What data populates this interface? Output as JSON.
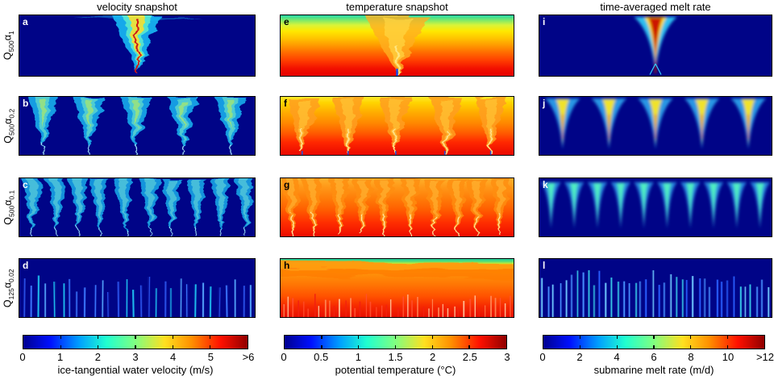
{
  "chart_data": {
    "type": "heatmap",
    "layout": "4 rows x 3 columns of simulation panels with three horizontal jet colorbars below",
    "columns": [
      {
        "id": "velocity",
        "title": "velocity snapshot"
      },
      {
        "id": "temperature",
        "title": "temperature snapshot"
      },
      {
        "id": "melt",
        "title": "time-averaged melt rate"
      }
    ],
    "rows": [
      {
        "id": "Q500-a1",
        "label_parts": {
          "base": "Q",
          "base_sub": "500",
          "alpha": "α",
          "alpha_sub": "1"
        }
      },
      {
        "id": "Q500-a0.2",
        "label_parts": {
          "base": "Q",
          "base_sub": "500",
          "alpha": "α",
          "alpha_sub": "0.2"
        }
      },
      {
        "id": "Q500-a0.1",
        "label_parts": {
          "base": "Q",
          "base_sub": "500",
          "alpha": "α",
          "alpha_sub": "0.1"
        }
      },
      {
        "id": "Q125-a0.02",
        "label_parts": {
          "base": "Q",
          "base_sub": "125",
          "alpha": "α",
          "alpha_sub": "0.02"
        }
      }
    ],
    "panels": [
      {
        "letter": "a",
        "row": 0,
        "col": 0,
        "type": "velocity",
        "plumes": 1,
        "seed": 11,
        "letter_color": "#ffffff",
        "description": "single turbulent discharge plume, red/yellow core"
      },
      {
        "letter": "b",
        "row": 1,
        "col": 0,
        "type": "velocity",
        "plumes": 5,
        "seed": 22,
        "letter_color": "#ffffff",
        "description": "five turbulent cyan plumes"
      },
      {
        "letter": "c",
        "row": 2,
        "col": 0,
        "type": "velocity",
        "plumes": 10,
        "seed": 33,
        "letter_color": "#ffffff",
        "description": "ten overlapping cyan plumes"
      },
      {
        "letter": "d",
        "row": 3,
        "col": 0,
        "type": "velocity-streaks",
        "streaks": 30,
        "seed": 44,
        "letter_color": "#ffffff",
        "description": "many thin blue velocity streaks"
      },
      {
        "letter": "e",
        "row": 0,
        "col": 1,
        "type": "temperature",
        "plumes": 1,
        "seed": 55,
        "bg": "e",
        "letter_color": "#000000",
        "description": "stratified temperature with single central plume"
      },
      {
        "letter": "f",
        "row": 1,
        "col": 1,
        "type": "temperature",
        "plumes": 5,
        "seed": 66,
        "bg": "f",
        "letter_color": "#000000",
        "description": "five warm plumes in stratified field"
      },
      {
        "letter": "g",
        "row": 2,
        "col": 1,
        "type": "temperature",
        "plumes": 10,
        "seed": 77,
        "bg": "g",
        "letter_color": "#000000",
        "description": "ten warm plumes"
      },
      {
        "letter": "h",
        "row": 3,
        "col": 1,
        "type": "temperature-streaks",
        "streaks": 45,
        "seed": 88,
        "bg": "h",
        "letter_color": "#000000",
        "description": "distributed convection, green surface layer over orange"
      },
      {
        "letter": "i",
        "row": 0,
        "col": 2,
        "type": "melt",
        "plumes": 1,
        "seed": 99,
        "letter_color": "#ffffff",
        "description": "single high melt cone, red core"
      },
      {
        "letter": "j",
        "row": 1,
        "col": 2,
        "type": "melt",
        "plumes": 5,
        "seed": 110,
        "letter_color": "#ffffff",
        "description": "five melt cones with yellow cores"
      },
      {
        "letter": "k",
        "row": 2,
        "col": 2,
        "type": "melt",
        "plumes": 10,
        "seed": 121,
        "letter_color": "#ffffff",
        "description": "ten green-cyan melt cones"
      },
      {
        "letter": "l",
        "row": 3,
        "col": 2,
        "type": "melt-streaks",
        "streaks": 40,
        "seed": 132,
        "letter_color": "#ffffff",
        "description": "many thin light-blue melt streaks"
      }
    ],
    "colorbars": [
      {
        "label": "ice-tangential water velocity (m/s)",
        "ticks": [
          "0",
          "1",
          "2",
          "3",
          "4",
          "5",
          ">6"
        ],
        "range": [
          0,
          6
        ]
      },
      {
        "label": "potential temperature (°C)",
        "ticks": [
          "0",
          "0.5",
          "1",
          "1.5",
          "2",
          "2.5",
          "3"
        ],
        "range": [
          0,
          3
        ]
      },
      {
        "label": "submarine melt rate (m/d)",
        "ticks": [
          "0",
          "2",
          "4",
          "6",
          "8",
          "10",
          ">12"
        ],
        "range": [
          0,
          12
        ]
      }
    ],
    "style": {
      "jet_stops": [
        [
          "0%",
          "#000090"
        ],
        [
          "12%",
          "#0010ff"
        ],
        [
          "25%",
          "#00a0ff"
        ],
        [
          "37%",
          "#20ffd0"
        ],
        [
          "50%",
          "#80ff80"
        ],
        [
          "63%",
          "#ffe020"
        ],
        [
          "75%",
          "#ff9000"
        ],
        [
          "88%",
          "#ff1000"
        ],
        [
          "100%",
          "#900000"
        ]
      ],
      "panel_bg_dark": "#000487",
      "temp_gradients": {
        "e": [
          [
            "0%",
            "#25d8a8"
          ],
          [
            "8%",
            "#7ce96a"
          ],
          [
            "16%",
            "#d8f43a"
          ],
          [
            "26%",
            "#ffe800"
          ],
          [
            "38%",
            "#ffc400"
          ],
          [
            "50%",
            "#ff9800"
          ],
          [
            "62%",
            "#ff6a00"
          ],
          [
            "75%",
            "#ff3c00"
          ],
          [
            "88%",
            "#f21000"
          ],
          [
            "100%",
            "#e60000"
          ]
        ],
        "f": [
          [
            "0%",
            "#ffe92a"
          ],
          [
            "10%",
            "#ffd400"
          ],
          [
            "25%",
            "#ffb000"
          ],
          [
            "45%",
            "#ff8800"
          ],
          [
            "62%",
            "#ff5c00"
          ],
          [
            "78%",
            "#ff2800"
          ],
          [
            "100%",
            "#ea0800"
          ]
        ],
        "g": [
          [
            "0%",
            "#ffb02a"
          ],
          [
            "15%",
            "#ff9818"
          ],
          [
            "35%",
            "#ff7c08"
          ],
          [
            "55%",
            "#ff5c00"
          ],
          [
            "75%",
            "#ff3000"
          ],
          [
            "100%",
            "#ee0c00"
          ]
        ],
        "h": [
          [
            "0%",
            "#20d0a0"
          ],
          [
            "4%",
            "#52dc78"
          ],
          [
            "7%",
            "#a8e84a"
          ],
          [
            "10%",
            "#ffd800"
          ],
          [
            "16%",
            "#ffae10"
          ],
          [
            "28%",
            "#ff8c08"
          ],
          [
            "45%",
            "#ff7404"
          ],
          [
            "65%",
            "#ff5000"
          ],
          [
            "82%",
            "#f62800"
          ],
          [
            "100%",
            "#e81000"
          ]
        ]
      }
    }
  }
}
